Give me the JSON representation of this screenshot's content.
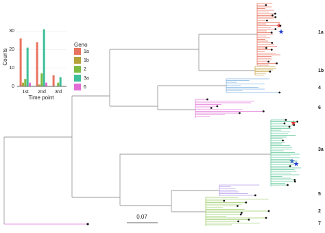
{
  "chart_data": {
    "type": "bar",
    "y_label": "Counts",
    "x_label": "Time point",
    "legend_title": "Geno",
    "categories": [
      "1st",
      "2nd",
      "3rd"
    ],
    "series": [
      {
        "name": "1a",
        "color": "#e8735f",
        "values": [
          26,
          24,
          6
        ]
      },
      {
        "name": "1b",
        "color": "#b5a33a",
        "values": [
          2,
          1,
          0
        ]
      },
      {
        "name": "2",
        "color": "#7dbb43",
        "values": [
          4,
          7,
          2
        ]
      },
      {
        "name": "3a",
        "color": "#3fbf9a",
        "values": [
          21,
          31,
          5
        ]
      },
      {
        "name": "6",
        "color": "#e36fd6",
        "values": [
          2,
          2,
          0
        ]
      }
    ],
    "ylim": [
      0,
      32
    ],
    "yticks": [
      0,
      10,
      20,
      30
    ],
    "grid": true
  },
  "tree": {
    "clade_labels": [
      "1a",
      "1b",
      "4",
      "6",
      "3a",
      "5",
      "2",
      "7"
    ],
    "scale_label": "0.07"
  }
}
